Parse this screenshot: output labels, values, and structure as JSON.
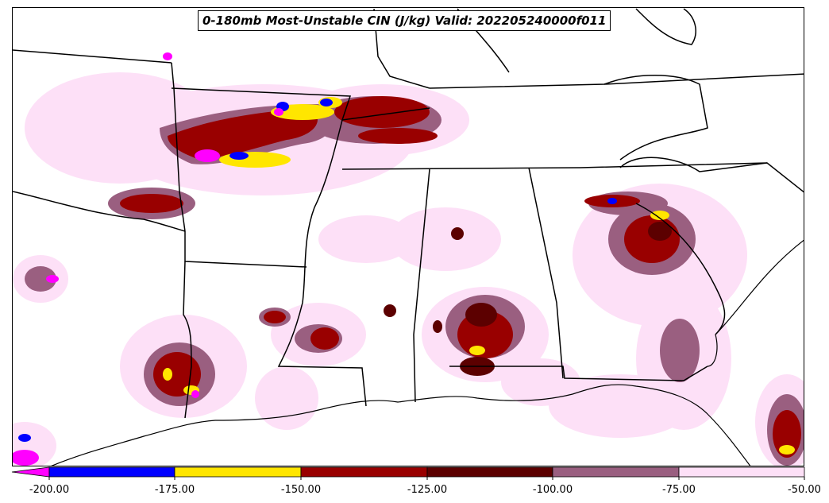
{
  "title": "0-180mb Most-Unstable CIN (J/kg) Valid: 202205240000f011",
  "colorbar": {
    "tick_labels": [
      "-200.00",
      "-175.00",
      "-150.00",
      "-125.00",
      "-100.00",
      "-75.00",
      "-50.00"
    ],
    "bins": [
      {
        "range": "< -200",
        "color": "#ff00ff"
      },
      {
        "range": "-200 to -175",
        "color": "#0000ff"
      },
      {
        "range": "-175 to -150",
        "color": "#ffe600"
      },
      {
        "range": "-150 to -125",
        "color": "#990000"
      },
      {
        "range": "-125 to -100",
        "color": "#5c0000"
      },
      {
        "range": "-100 to -75",
        "color": "#9a5f80"
      },
      {
        "range": "-75 to -50",
        "color": "#fde0f7"
      }
    ]
  },
  "map": {
    "region": "Southeastern United States",
    "field": "CIN",
    "units": "J/kg"
  }
}
